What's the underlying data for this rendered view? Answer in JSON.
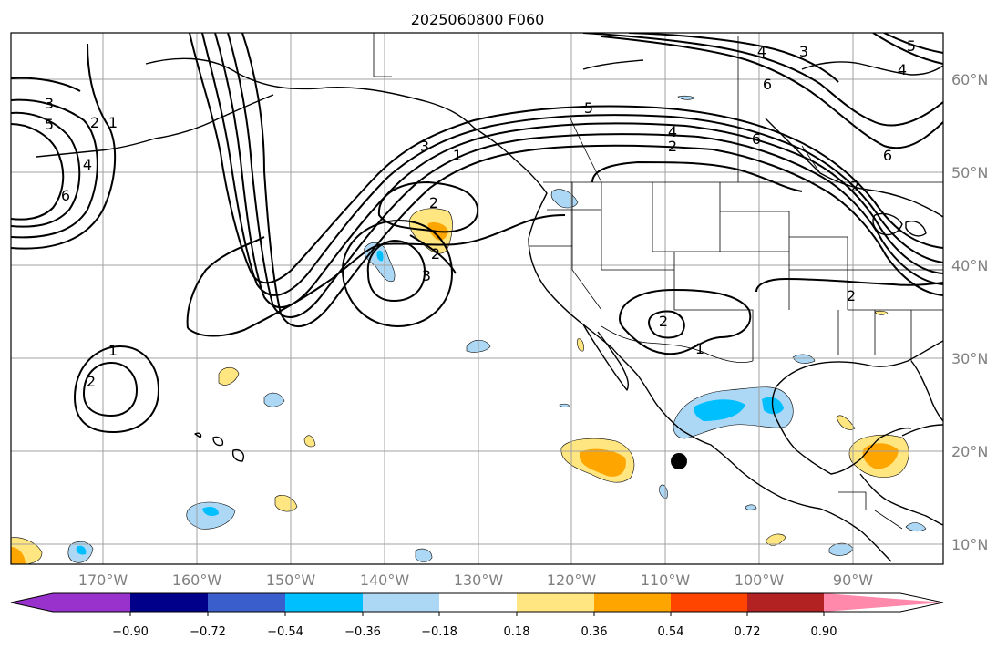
{
  "title": "2025060800 F060",
  "longitude_labels": [
    "170°W",
    "160°W",
    "150°W",
    "140°W",
    "130°W",
    "120°W",
    "110°W",
    "100°W",
    "90°W"
  ],
  "latitude_labels": [
    "60°N",
    "50°N",
    "40°N",
    "30°N",
    "20°N",
    "10°N"
  ],
  "colorbar": {
    "colors": [
      "#9932cc",
      "#00008b",
      "#3a5fcd",
      "#00bfff",
      "#add8f5",
      "#ffffff",
      "#ffe680",
      "#ffa500",
      "#ff4500",
      "#b22222",
      "#ff89ab"
    ],
    "tick_labels": [
      "−0.90",
      "−0.72",
      "−0.54",
      "−0.36",
      "−0.18",
      "0.18",
      "0.36",
      "0.54",
      "0.72",
      "0.90"
    ]
  },
  "contour_labels": [
    "3",
    "5",
    "2",
    "1",
    "4",
    "6",
    "3",
    "2",
    "1",
    "2",
    "3",
    "2",
    "5",
    "4",
    "2",
    "6",
    "4",
    "3",
    "4",
    "6",
    "5",
    "6",
    "2",
    "1",
    "1",
    "2",
    "2"
  ]
}
